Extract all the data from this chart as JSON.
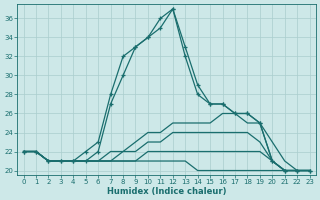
{
  "xlabel": "Humidex (Indice chaleur)",
  "background_color": "#cde8e8",
  "line_color": "#1a6e6e",
  "grid_color": "#aacece",
  "xlim": [
    -0.5,
    23.5
  ],
  "ylim": [
    19.5,
    37.5
  ],
  "xticks": [
    0,
    1,
    2,
    3,
    4,
    5,
    6,
    7,
    8,
    9,
    10,
    11,
    12,
    13,
    14,
    15,
    16,
    17,
    18,
    19,
    20,
    21,
    22,
    23
  ],
  "yticks": [
    20,
    22,
    24,
    26,
    28,
    30,
    32,
    34,
    36
  ],
  "series_markers": [
    [
      22,
      22,
      21,
      21,
      21,
      21,
      22,
      27,
      30,
      33,
      34,
      35,
      37,
      32,
      28,
      27,
      27,
      26,
      26,
      25,
      21,
      20,
      20,
      20
    ],
    [
      22,
      22,
      21,
      21,
      21,
      22,
      23,
      28,
      32,
      33,
      34,
      36,
      37,
      33,
      29,
      27,
      27,
      26,
      26,
      25,
      21,
      20,
      20,
      20
    ]
  ],
  "series_plain": [
    [
      22,
      22,
      21,
      21,
      21,
      21,
      21,
      21,
      21,
      21,
      21,
      21,
      21,
      21,
      20,
      20,
      20,
      20,
      20,
      20,
      20,
      20,
      20,
      20
    ],
    [
      22,
      22,
      21,
      21,
      21,
      21,
      21,
      21,
      21,
      21,
      22,
      22,
      22,
      22,
      22,
      22,
      22,
      22,
      22,
      22,
      21,
      20,
      20,
      20
    ],
    [
      22,
      22,
      21,
      21,
      21,
      21,
      21,
      21,
      22,
      22,
      23,
      23,
      24,
      24,
      24,
      24,
      24,
      24,
      24,
      23,
      21,
      20,
      20,
      20
    ],
    [
      22,
      22,
      21,
      21,
      21,
      21,
      21,
      22,
      22,
      23,
      24,
      24,
      25,
      25,
      25,
      25,
      26,
      26,
      25,
      25,
      23,
      21,
      20,
      20
    ]
  ]
}
